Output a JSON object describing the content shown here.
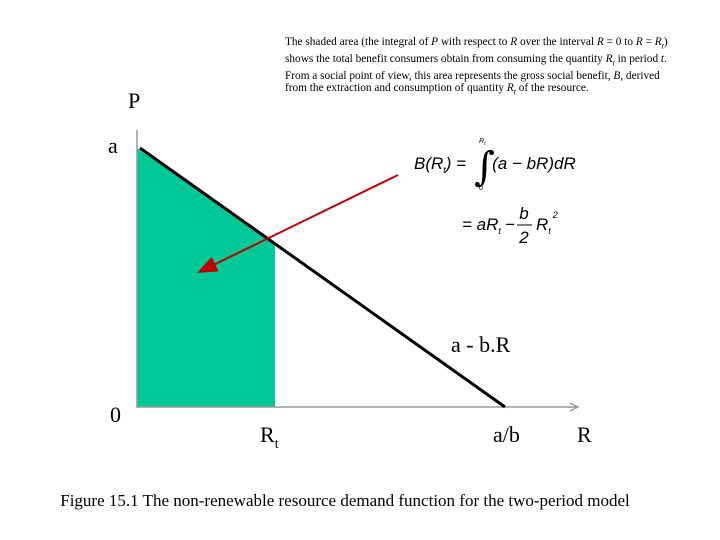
{
  "annotation": {
    "paragraphs": [
      [
        "The shaded area (the integral of ",
        "P",
        " with respect to ",
        "R",
        " over the interval ",
        "R",
        " = 0 to ",
        "R",
        " = ",
        "R",
        "t",
        ") shows the total benefit consumers obtain from consuming the quantity ",
        "R",
        "t",
        " in period ",
        "t",
        "."
      ],
      [
        "From a social point of view, this area represents the gross social benefit, ",
        "B",
        ", derived from the extraction and consumption of quantity ",
        "R",
        "t",
        " of the resource."
      ]
    ]
  },
  "axes": {
    "y_label": "P",
    "x_label": "R",
    "origin": "0",
    "intercept": "a",
    "x_intercept": "a/b",
    "quantity": {
      "base": "R",
      "sub": "t"
    }
  },
  "curve_label": "a - b.R",
  "formula": {
    "line1": [
      "B(R",
      "t",
      ") =",
      "(a − bR)dR"
    ],
    "integral": {
      "sign": "∫",
      "upper": "R",
      "upper_sub": "t",
      "lower": "0"
    },
    "line2": [
      "= aR",
      "t",
      "−"
    ],
    "fraction": {
      "num": "b",
      "den": "2"
    },
    "tail": [
      "R",
      "t",
      "2"
    ]
  },
  "caption": "Figure 15.1 The non-renewable resource demand function for the two-period model"
}
